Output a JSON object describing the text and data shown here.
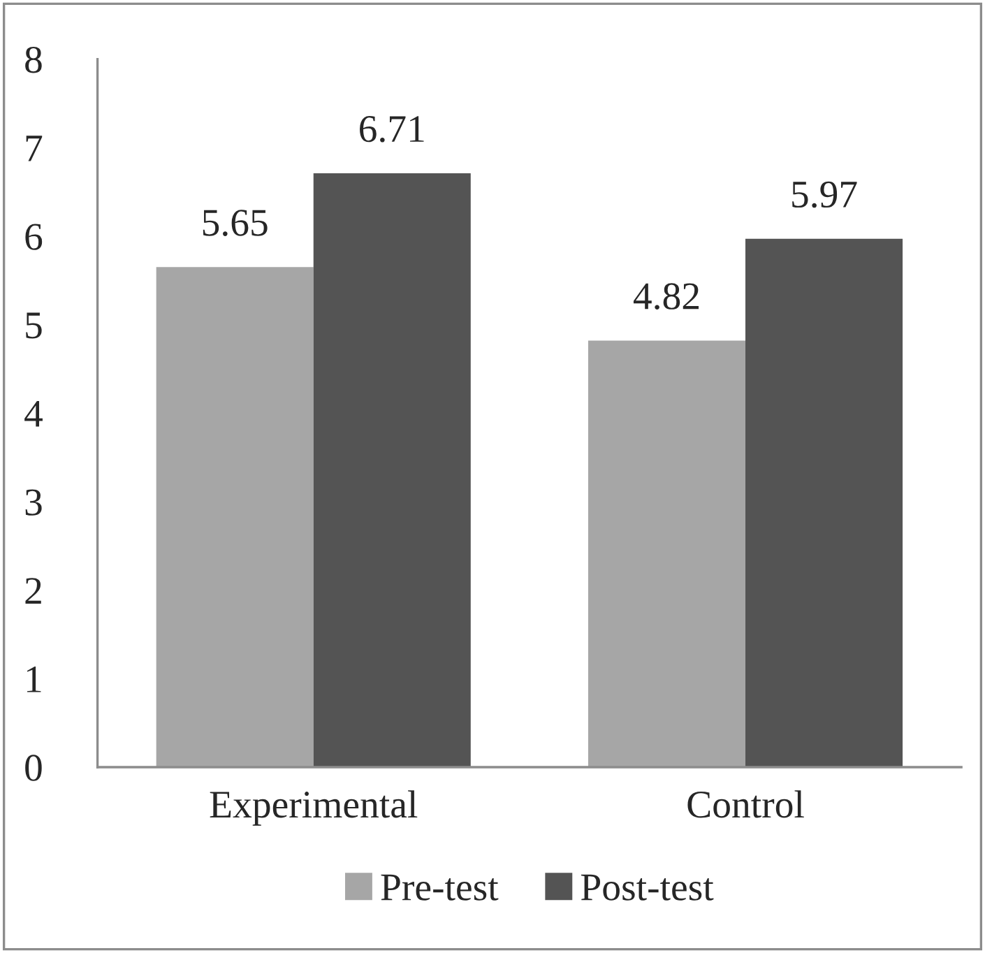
{
  "chart_data": {
    "type": "bar",
    "categories": [
      "Experimental",
      "Control"
    ],
    "series": [
      {
        "name": "Pre-test",
        "color": "#a6a6a6",
        "values": [
          5.65,
          4.82
        ]
      },
      {
        "name": "Post-test",
        "color": "#545454",
        "values": [
          6.71,
          5.97
        ]
      }
    ],
    "ylim": [
      0,
      8
    ],
    "yticks": [
      0,
      1,
      2,
      3,
      4,
      5,
      6,
      7,
      8
    ],
    "data_labels": true,
    "grid": false,
    "legend": "bottom"
  }
}
